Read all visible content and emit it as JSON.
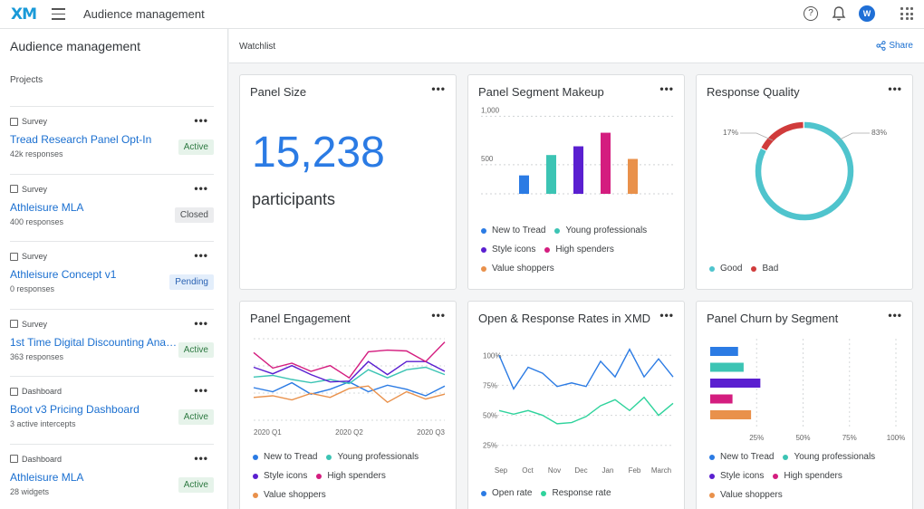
{
  "topbar": {
    "logo": "XM",
    "title": "Audience management",
    "avatar": "W"
  },
  "sidebar": {
    "title": "Audience management",
    "subtitle": "Projects",
    "projects": [
      {
        "type": "Survey",
        "name": "Tread Research Panel Opt-In",
        "meta": "42k responses",
        "status": "Active"
      },
      {
        "type": "Survey",
        "name": "Athleisure MLA",
        "meta": "400 responses",
        "status": "Closed"
      },
      {
        "type": "Survey",
        "name": "Athleisure Concept v1",
        "meta": "0 responses",
        "status": "Pending"
      },
      {
        "type": "Survey",
        "name": "1st Time Digital Discounting Analy...",
        "meta": "363 responses",
        "status": "Active"
      },
      {
        "type": "Dashboard",
        "name": "Boot v3 Pricing Dashboard",
        "meta": "3 active intercepts",
        "status": "Active"
      },
      {
        "type": "Dashboard",
        "name": "Athleisure MLA",
        "meta": "28 widgets",
        "status": "Active"
      }
    ],
    "more": "•••"
  },
  "watchlist": {
    "label": "Watchlist",
    "share": "Share"
  },
  "colors": {
    "blue": "#2b7be4",
    "teal": "#3cc4b4",
    "purple": "#5a1fd0",
    "pink": "#d41d7f",
    "orange": "#e9914b",
    "donut_good": "#4fc4cd",
    "donut_bad": "#d03b3b",
    "green": "#2fd39c"
  },
  "cards": {
    "panel_size": {
      "title": "Panel Size",
      "value": "15,238",
      "unit": "participants"
    },
    "segment": {
      "title": "Panel Segment Makeup",
      "legend": [
        "New to Tread",
        "Young professionals",
        "Style icons",
        "High spenders",
        "Value shoppers"
      ]
    },
    "quality": {
      "title": "Response Quality",
      "legend": [
        "Good",
        "Bad"
      ],
      "label_bad": "17%",
      "label_good": "83%"
    },
    "engagement": {
      "title": "Panel Engagement",
      "legend": [
        "New to Tread",
        "Young professionals",
        "Style icons",
        "High spenders",
        "Value shoppers"
      ]
    },
    "rates": {
      "title": "Open & Response Rates in XMD",
      "legend": [
        "Open rate",
        "Response rate"
      ]
    },
    "churn": {
      "title": "Panel Churn by Segment",
      "legend": [
        "New to Tread",
        "Young professionals",
        "Style icons",
        "High spenders",
        "Value shoppers"
      ]
    }
  },
  "chart_data": [
    {
      "type": "bar",
      "title": "Panel Segment Makeup",
      "categories": [
        "New to Tread",
        "Young professionals",
        "Style icons",
        "High spenders",
        "Value shoppers"
      ],
      "values": [
        390,
        600,
        690,
        830,
        560
      ],
      "ylim": [
        200,
        1050
      ],
      "yticks": [
        500,
        1000
      ],
      "ytick_labels": [
        "500",
        "1,000"
      ]
    },
    {
      "type": "pie",
      "title": "Response Quality",
      "categories": [
        "Good",
        "Bad"
      ],
      "values": [
        83,
        17
      ]
    },
    {
      "type": "line",
      "title": "Panel Engagement",
      "x": [
        "2020 Q1",
        "",
        "",
        "",
        "",
        "2020 Q2",
        "",
        "",
        "",
        "",
        "2020 Q3"
      ],
      "xtick_labels": [
        "2020 Q1",
        "2020 Q2",
        "2020 Q3"
      ],
      "series": [
        {
          "name": "New to Tread",
          "values": [
            40,
            35,
            46,
            32,
            38,
            47,
            35,
            43,
            38,
            30,
            42
          ]
        },
        {
          "name": "Young professionals",
          "values": [
            53,
            55,
            50,
            46,
            50,
            45,
            62,
            52,
            62,
            65,
            56
          ]
        },
        {
          "name": "Style icons",
          "values": [
            65,
            57,
            67,
            56,
            47,
            48,
            72,
            56,
            72,
            72,
            60
          ]
        },
        {
          "name": "High spenders",
          "values": [
            83,
            64,
            70,
            60,
            67,
            52,
            84,
            86,
            85,
            72,
            96
          ]
        },
        {
          "name": "Value shoppers",
          "values": [
            28,
            30,
            25,
            33,
            28,
            39,
            42,
            22,
            35,
            26,
            32
          ]
        }
      ],
      "ylim": [
        0,
        100
      ]
    },
    {
      "type": "line",
      "title": "Open & Response Rates in XMD",
      "x": [
        "Sep",
        "",
        "Oct",
        "",
        "Nov",
        "",
        "Dec",
        "",
        "Jan",
        "",
        "Feb",
        "",
        "March"
      ],
      "xtick_labels": [
        "Sep",
        "Oct",
        "Nov",
        "Dec",
        "Jan",
        "Feb",
        "March"
      ],
      "series": [
        {
          "name": "Open rate",
          "values": [
            100,
            72,
            90,
            85,
            74,
            77,
            74,
            95,
            82,
            105,
            82,
            97,
            82
          ]
        },
        {
          "name": "Response rate",
          "values": [
            54,
            51,
            54,
            50,
            43,
            44,
            49,
            58,
            63,
            54,
            65,
            50,
            60
          ]
        }
      ],
      "ylim": [
        15,
        110
      ],
      "yticks": [
        25,
        50,
        75,
        100
      ],
      "ytick_labels": [
        "25%",
        "50%",
        "75%",
        "100%"
      ]
    },
    {
      "type": "bar",
      "orientation": "horizontal",
      "title": "Panel Churn by Segment",
      "categories": [
        "New to Tread",
        "Young professionals",
        "Style icons",
        "High spenders",
        "Value shoppers"
      ],
      "values": [
        15,
        18,
        27,
        12,
        22
      ],
      "xlim": [
        0,
        100
      ],
      "xticks": [
        25,
        50,
        75,
        100
      ],
      "xtick_labels": [
        "25%",
        "50%",
        "75%",
        "100%"
      ]
    }
  ]
}
